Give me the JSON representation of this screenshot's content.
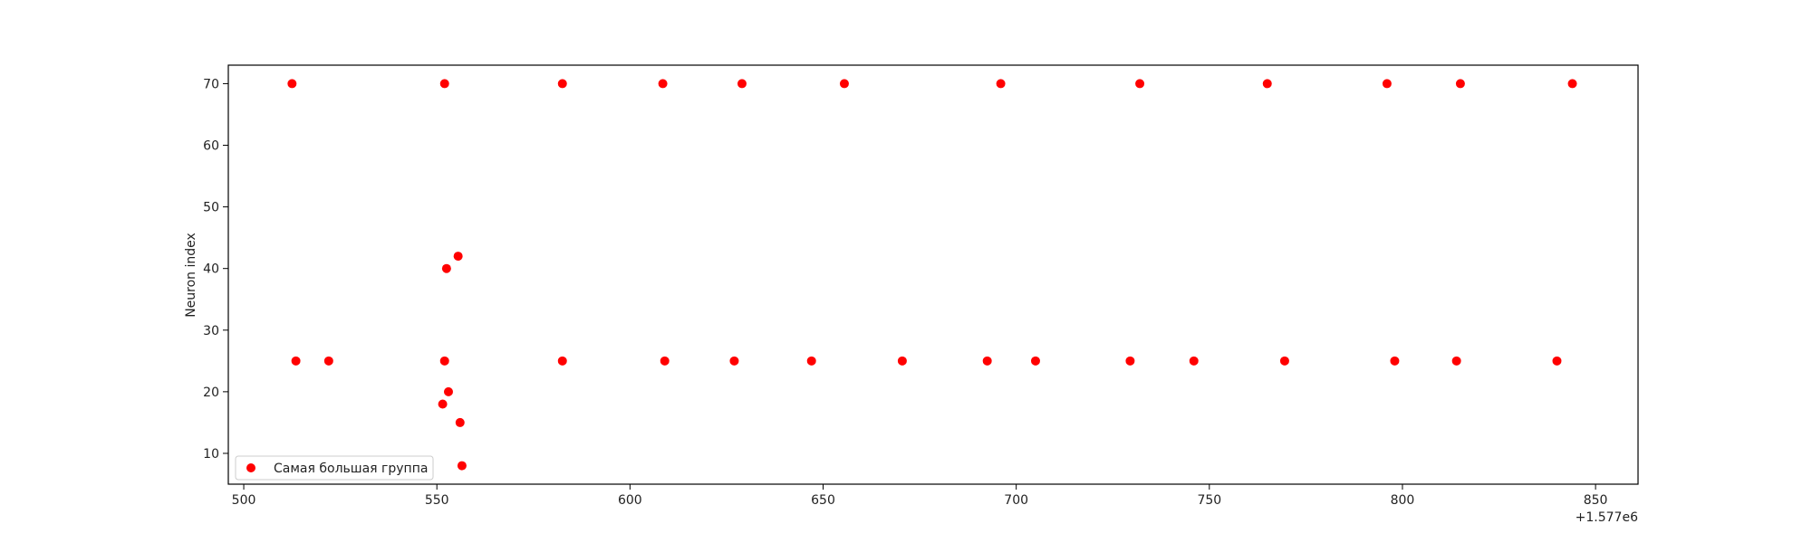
{
  "chart_data": {
    "type": "scatter",
    "title": "",
    "xlabel": "",
    "ylabel": "Neuron index",
    "x_offset_label": "+1.577e6",
    "xlim": [
      496,
      861
    ],
    "ylim": [
      5,
      73
    ],
    "xticks": [
      500,
      550,
      600,
      650,
      700,
      750,
      800,
      850
    ],
    "yticks": [
      10,
      20,
      30,
      40,
      50,
      60,
      70
    ],
    "grid": false,
    "legend_position": "lower-left",
    "series": [
      {
        "name": "Самая большая группа",
        "color": "#ff0000",
        "points": [
          [
            512.5,
            70
          ],
          [
            552,
            70
          ],
          [
            582.5,
            70
          ],
          [
            608.5,
            70
          ],
          [
            629,
            70
          ],
          [
            655.5,
            70
          ],
          [
            696,
            70
          ],
          [
            732,
            70
          ],
          [
            765,
            70
          ],
          [
            796,
            70
          ],
          [
            815,
            70
          ],
          [
            844,
            70
          ],
          [
            513.5,
            25
          ],
          [
            522,
            25
          ],
          [
            552,
            25
          ],
          [
            582.5,
            25
          ],
          [
            609,
            25
          ],
          [
            627,
            25
          ],
          [
            647,
            25
          ],
          [
            670.5,
            25
          ],
          [
            692.5,
            25
          ],
          [
            705,
            25
          ],
          [
            729.5,
            25
          ],
          [
            746,
            25
          ],
          [
            769.5,
            25
          ],
          [
            798,
            25
          ],
          [
            814,
            25
          ],
          [
            840,
            25
          ],
          [
            552.5,
            40
          ],
          [
            555.5,
            42
          ],
          [
            553,
            20
          ],
          [
            551.5,
            18
          ],
          [
            556,
            15
          ],
          [
            556.5,
            8
          ]
        ]
      }
    ]
  }
}
